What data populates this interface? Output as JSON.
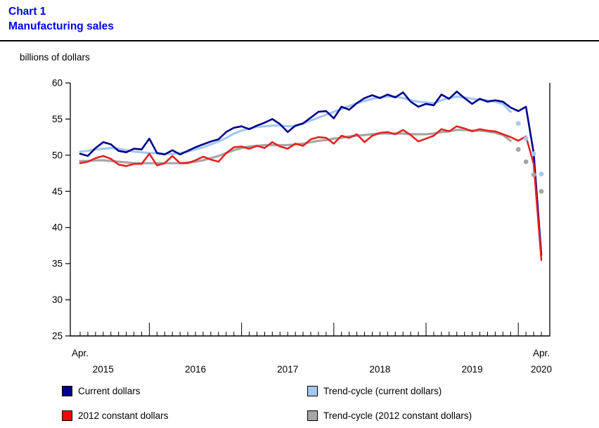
{
  "title": {
    "line1": "Chart 1",
    "line2": "Manufacturing sales"
  },
  "y_axis_unit_label": "billions of dollars",
  "colors": {
    "title_blue": "#0000EE",
    "axis_black": "#000000",
    "current_dollars": "#00008B",
    "constant_dollars": "#E62222",
    "trend_current": "#A5C8F0",
    "trend_constant": "#A6A6A6"
  },
  "legend": [
    {
      "label": "Current dollars",
      "swatch_style": "background:#00008B"
    },
    {
      "label": "Trend-cycle (current dollars)",
      "swatch_style": "background:#A5C8F0"
    },
    {
      "label": "2012 constant dollars",
      "swatch_style": "background:#FF0000"
    },
    {
      "label": "Trend-cycle (2012 constant dollars)",
      "swatch_style": "background:#A6A6A6"
    }
  ],
  "chart_data": {
    "type": "line",
    "title": "Manufacturing sales",
    "ylabel": "billions of dollars",
    "ylim": [
      25,
      60
    ],
    "yticks": [
      25,
      30,
      35,
      40,
      45,
      50,
      55,
      60
    ],
    "x_description": "Monthly, April 2015 to April 2020 (61 points)",
    "x_start_label": "Apr.",
    "x_end_label": "Apr.",
    "year_labels": [
      {
        "label": "2015",
        "month_index": 3
      },
      {
        "label": "2016",
        "month_index": 15
      },
      {
        "label": "2017",
        "month_index": 27
      },
      {
        "label": "2018",
        "month_index": 39
      },
      {
        "label": "2019",
        "month_index": 51
      },
      {
        "label": "2020",
        "month_index": 60
      }
    ],
    "series": [
      {
        "id": "current-dollars",
        "name": "Current dollars",
        "color": "#00008B",
        "stroke_width": 2.6,
        "values": [
          50.2,
          49.9,
          51.0,
          51.8,
          51.5,
          50.6,
          50.4,
          50.9,
          50.8,
          52.3,
          50.3,
          50.1,
          50.7,
          50.1,
          50.6,
          51.1,
          51.5,
          51.9,
          52.2,
          53.2,
          53.8,
          54.0,
          53.6,
          54.1,
          54.5,
          55.0,
          54.3,
          53.2,
          54.1,
          54.4,
          55.2,
          56.0,
          56.1,
          55.1,
          56.7,
          56.3,
          57.2,
          57.9,
          58.3,
          57.9,
          58.4,
          58.0,
          58.7,
          57.4,
          56.7,
          57.1,
          56.9,
          58.4,
          57.8,
          58.8,
          57.9,
          57.1,
          57.8,
          57.4,
          57.6,
          57.4,
          56.6,
          56.1,
          56.7,
          50.3,
          36.2
        ]
      },
      {
        "id": "constant-dollars",
        "name": "2012 constant dollars",
        "color": "#E62222",
        "stroke_width": 2.6,
        "values": [
          48.9,
          49.1,
          49.6,
          49.9,
          49.5,
          48.7,
          48.5,
          48.8,
          48.8,
          50.2,
          48.6,
          48.9,
          49.9,
          48.9,
          48.9,
          49.3,
          49.8,
          49.4,
          49.1,
          50.3,
          51.1,
          51.2,
          50.9,
          51.3,
          51.0,
          51.8,
          51.2,
          50.9,
          51.6,
          51.3,
          52.2,
          52.5,
          52.4,
          51.6,
          52.7,
          52.4,
          52.9,
          51.8,
          52.7,
          53.1,
          53.2,
          52.9,
          53.5,
          52.8,
          51.9,
          52.3,
          52.7,
          53.6,
          53.3,
          54.0,
          53.7,
          53.3,
          53.6,
          53.4,
          53.3,
          52.9,
          52.5,
          52.0,
          52.6,
          48.8,
          35.5
        ]
      },
      {
        "id": "trend-current",
        "name": "Trend-cycle (current dollars)",
        "color": "#A5C8F0",
        "stroke_width": 3.2,
        "values": [
          50.5,
          50.6,
          50.8,
          50.9,
          51.0,
          50.9,
          50.7,
          50.5,
          50.4,
          50.3,
          50.3,
          50.2,
          50.2,
          50.3,
          50.5,
          50.8,
          51.1,
          51.5,
          51.9,
          52.4,
          53.0,
          53.4,
          53.7,
          53.9,
          54.0,
          54.1,
          54.1,
          54.0,
          54.0,
          54.4,
          54.8,
          55.2,
          55.6,
          56.0,
          56.4,
          56.8,
          57.2,
          57.5,
          57.8,
          58.0,
          58.1,
          58.1,
          57.9,
          57.6,
          57.4,
          57.3,
          57.2,
          57.6,
          57.9,
          58.1,
          58.0,
          57.8,
          57.7,
          57.6,
          57.4,
          57.1,
          56.0
        ],
        "projection_dots": {
          "start_index": 57,
          "values": [
            54.4,
            52.3,
            50.2,
            47.4
          ]
        }
      },
      {
        "id": "trend-constant",
        "name": "Trend-cycle (2012 constant dollars)",
        "color": "#A6A6A6",
        "stroke_width": 3.2,
        "values": [
          49.2,
          49.2,
          49.3,
          49.3,
          49.2,
          49.1,
          49.0,
          48.9,
          48.9,
          48.9,
          48.9,
          48.9,
          48.9,
          48.9,
          49.0,
          49.1,
          49.3,
          49.6,
          49.9,
          50.3,
          50.7,
          51.0,
          51.2,
          51.3,
          51.4,
          51.4,
          51.4,
          51.4,
          51.5,
          51.6,
          51.8,
          52.0,
          52.1,
          52.3,
          52.4,
          52.6,
          52.7,
          52.8,
          52.9,
          53.0,
          53.0,
          53.0,
          53.0,
          52.9,
          52.9,
          52.9,
          53.0,
          53.2,
          53.3,
          53.5,
          53.5,
          53.4,
          53.4,
          53.3,
          53.1,
          52.8,
          52.0
        ],
        "projection_dots": {
          "start_index": 57,
          "values": [
            50.8,
            49.1,
            47.3,
            45.0
          ]
        }
      }
    ],
    "legend_position": "bottom",
    "grid": false
  }
}
